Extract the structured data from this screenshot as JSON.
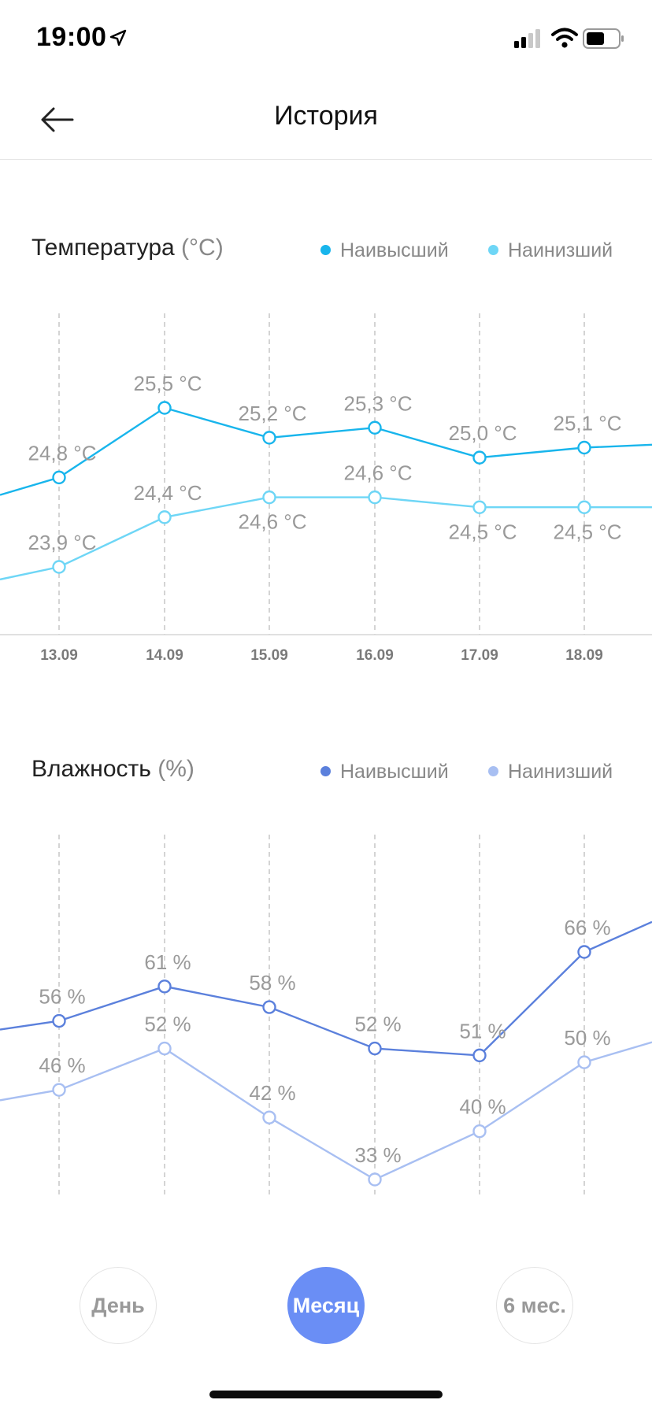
{
  "status_bar": {
    "time": "19:00",
    "icons": [
      "location-arrow-icon",
      "cellular-signal-icon",
      "wifi-icon",
      "battery-icon"
    ]
  },
  "nav": {
    "back_icon": "arrow-left-icon",
    "title": "История"
  },
  "temperature": {
    "title": "Температура",
    "unit": "(°C)",
    "legend": {
      "high": "Наивысший",
      "low": "Наинизший"
    },
    "colors": {
      "high": "#18b5ec",
      "low": "#6ed6f6"
    },
    "chart_data": {
      "type": "line",
      "categories": [
        "13.09",
        "14.09",
        "15.09",
        "16.09",
        "17.09",
        "18.09"
      ],
      "series": [
        {
          "name": "Наивысший",
          "values": [
            24.8,
            25.5,
            25.2,
            25.3,
            25.0,
            25.1
          ],
          "labels": [
            "24,8 °C",
            "25,5 °C",
            "25,2 °C",
            "25,3 °C",
            "25,0 °C",
            "25,1 °C"
          ]
        },
        {
          "name": "Наинизший",
          "values": [
            23.9,
            24.4,
            24.6,
            24.6,
            24.5,
            24.5
          ],
          "labels": [
            "23,9 °C",
            "24,4 °C",
            "24,6 °C",
            "24,6 °C",
            "24,5 °C",
            "24,5 °C"
          ]
        }
      ],
      "xlabel": "",
      "ylabel": "",
      "grid": "vertical dashed"
    }
  },
  "humidity": {
    "title": "Влажность",
    "unit": "(%)",
    "legend": {
      "high": "Наивысший",
      "low": "Наинизший"
    },
    "colors": {
      "high": "#5b80dc",
      "low": "#a8bff2"
    },
    "chart_data": {
      "type": "line",
      "categories": [
        "13.09",
        "14.09",
        "15.09",
        "16.09",
        "17.09",
        "18.09"
      ],
      "series": [
        {
          "name": "Наивысший",
          "values": [
            56,
            61,
            58,
            52,
            51,
            66
          ],
          "labels": [
            "56 %",
            "61 %",
            "58 %",
            "52 %",
            "51 %",
            "66 %"
          ]
        },
        {
          "name": "Наинизший",
          "values": [
            46,
            52,
            42,
            33,
            40,
            50
          ],
          "labels": [
            "46 %",
            "52 %",
            "42 %",
            "33 %",
            "40 %",
            "50 %"
          ]
        }
      ],
      "xlabel": "",
      "ylabel": "",
      "grid": "vertical dashed"
    }
  },
  "periods": {
    "items": [
      "День",
      "Месяц",
      "6 мес."
    ],
    "selected": "Месяц"
  }
}
